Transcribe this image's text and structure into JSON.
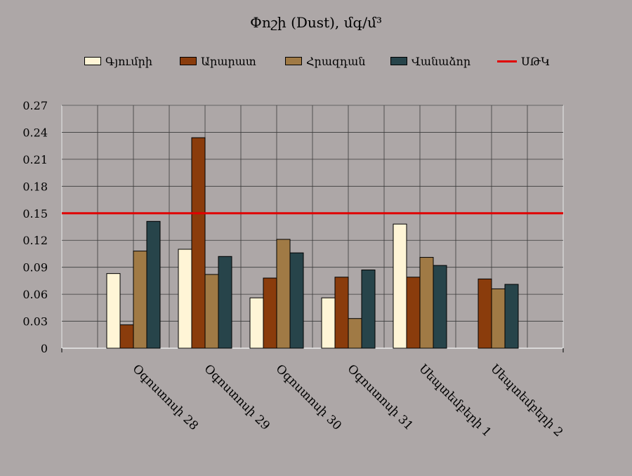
{
  "chart_data": {
    "type": "bar",
    "title": "Փոշի (Dust), մգ/մ³",
    "categories": [
      "Օգոստոսի 28",
      "Օգոստոսի 29",
      "Օգոստոսի 30",
      "Օգոստոսի 31",
      "Սեպտեմբերի 1",
      "Սեպտեմբերի 2"
    ],
    "series": [
      {
        "name": "Գյումրի",
        "color": "#fff5d6",
        "values": [
          0.083,
          0.11,
          0.056,
          0.056,
          0.138,
          null
        ]
      },
      {
        "name": "Արարատ",
        "color": "#8a3c0c",
        "values": [
          0.026,
          0.234,
          0.078,
          0.079,
          0.079,
          0.077
        ]
      },
      {
        "name": "Հրազդան",
        "color": "#a07a45",
        "values": [
          0.108,
          0.082,
          0.121,
          0.033,
          0.101,
          0.066
        ]
      },
      {
        "name": "Վանաձոր",
        "color": "#27444a",
        "values": [
          0.141,
          0.102,
          0.106,
          0.087,
          0.092,
          0.071
        ]
      }
    ],
    "threshold": {
      "name": "ՍԹԿ",
      "value": 0.15,
      "color": "#e00000"
    },
    "yticks": [
      "0.27",
      "0.24",
      "0.21",
      "0.18",
      "0.15",
      "0.12",
      "0.09",
      "0.06",
      "0.03",
      "0"
    ],
    "ylim": [
      0,
      0.27
    ],
    "grid": true,
    "legend_position": "top"
  }
}
